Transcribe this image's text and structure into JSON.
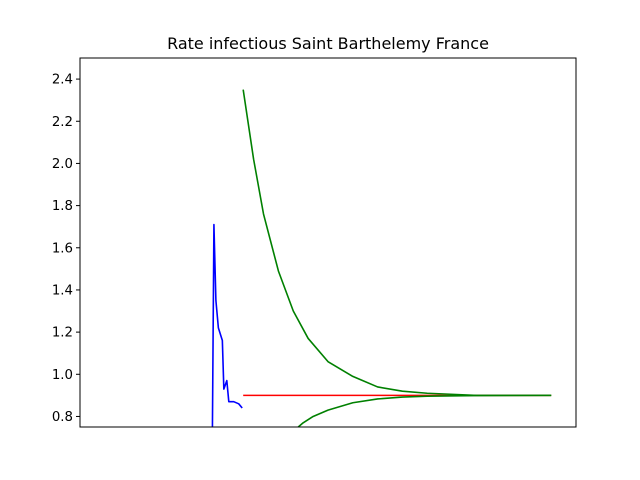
{
  "chart_data": {
    "type": "line",
    "title": "Rate infectious Saint Barthelemy France",
    "xlabel": "",
    "ylabel": "",
    "xlim": [
      0,
      100
    ],
    "ylim": [
      0.75,
      2.5
    ],
    "yticks": [
      0.8,
      1.0,
      1.2,
      1.4,
      1.6,
      1.8,
      2.0,
      2.2,
      2.4
    ],
    "ytick_labels": [
      "0.8",
      "1.0",
      "1.2",
      "1.4",
      "1.6",
      "1.8",
      "2.0",
      "2.2",
      "2.4"
    ],
    "xticks_visible": false,
    "grid": false,
    "series": [
      {
        "color": "#0000ff",
        "points": [
          [
            26.7,
            0.75
          ],
          [
            27.0,
            1.71
          ],
          [
            27.4,
            1.35
          ],
          [
            27.9,
            1.22
          ],
          [
            28.7,
            1.16
          ],
          [
            29.0,
            0.93
          ],
          [
            29.6,
            0.97
          ],
          [
            30.0,
            0.87
          ],
          [
            31.0,
            0.87
          ],
          [
            32.0,
            0.86
          ],
          [
            32.7,
            0.84
          ]
        ]
      },
      {
        "color": "#ff0000",
        "points": [
          [
            32.9,
            0.9
          ],
          [
            95.0,
            0.9
          ]
        ]
      },
      {
        "color": "#008000",
        "points": [
          [
            32.9,
            2.35
          ],
          [
            35,
            2.02
          ],
          [
            37,
            1.76
          ],
          [
            40,
            1.49
          ],
          [
            43,
            1.3
          ],
          [
            46,
            1.17
          ],
          [
            50,
            1.06
          ],
          [
            55,
            0.99
          ],
          [
            60,
            0.94
          ],
          [
            65,
            0.92
          ],
          [
            70,
            0.91
          ],
          [
            80,
            0.9
          ],
          [
            95,
            0.9
          ]
        ]
      },
      {
        "color": "#008000",
        "points": [
          [
            44.0,
            0.75
          ],
          [
            45,
            0.77
          ],
          [
            47,
            0.8
          ],
          [
            50,
            0.83
          ],
          [
            55,
            0.865
          ],
          [
            60,
            0.883
          ],
          [
            65,
            0.892
          ],
          [
            70,
            0.896
          ],
          [
            80,
            0.899
          ],
          [
            95,
            0.9
          ]
        ]
      }
    ]
  }
}
